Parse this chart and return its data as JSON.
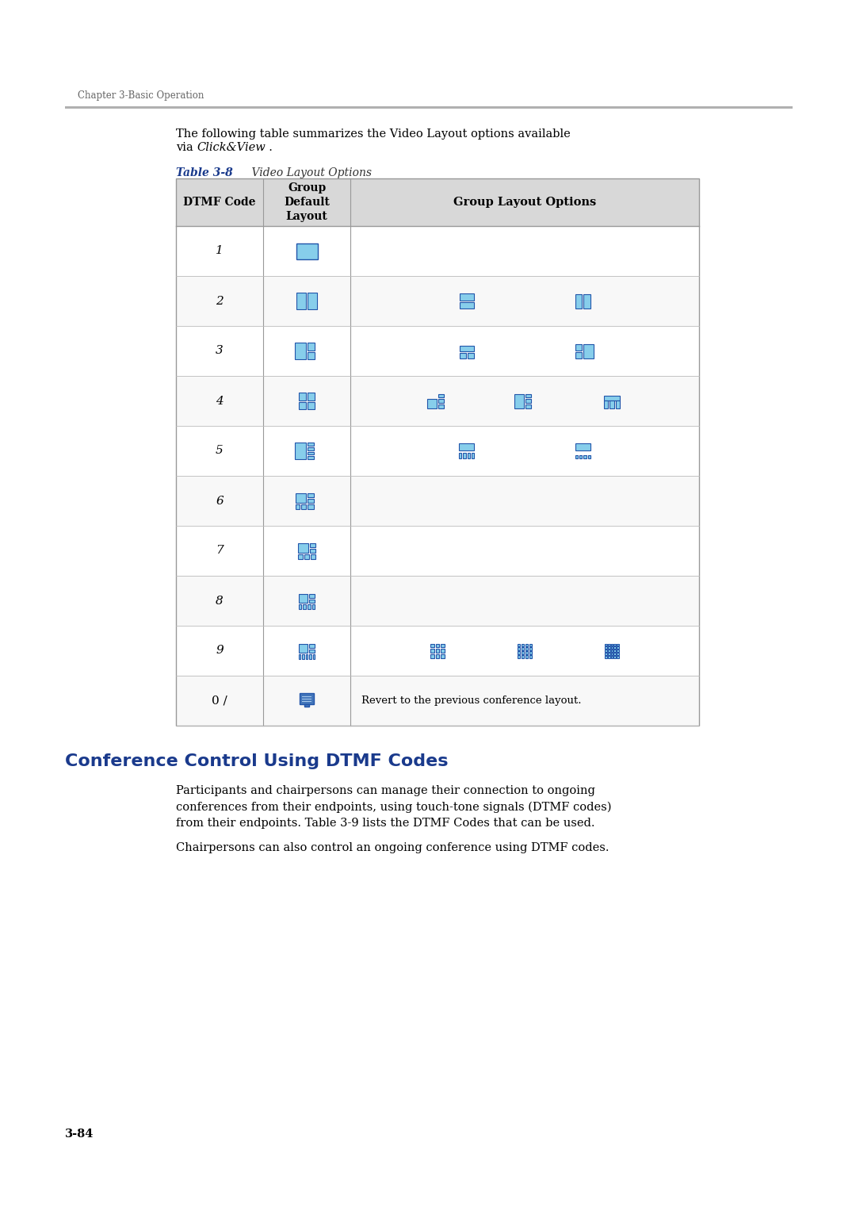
{
  "page_bg": "#ffffff",
  "header_text": "Chapter 3-Basic Operation",
  "header_line_color": "#b0b0b0",
  "table_label_color": "#1a3a8c",
  "col_headers": [
    "DTMF Code",
    "Group\nDefault\nLayout",
    "Group Layout Options"
  ],
  "header_bg": "#d8d8d8",
  "section_title": "Conference Control Using DTMF Codes",
  "section_title_color": "#1a3a8c",
  "body_text_1": "Participants and chairpersons can manage their connection to ongoing\nconferences from their endpoints, using touch-tone signals (DTMF codes)\nfrom their endpoints. Table 3-9 lists the DTMF Codes that can be used.",
  "body_text_2": "Chairpersons can also control an ongoing conference using DTMF codes.",
  "page_num": "3-84",
  "icon_color_light": "#87ceeb",
  "icon_color_dark": "#2255aa",
  "icon_border": "#2255aa"
}
